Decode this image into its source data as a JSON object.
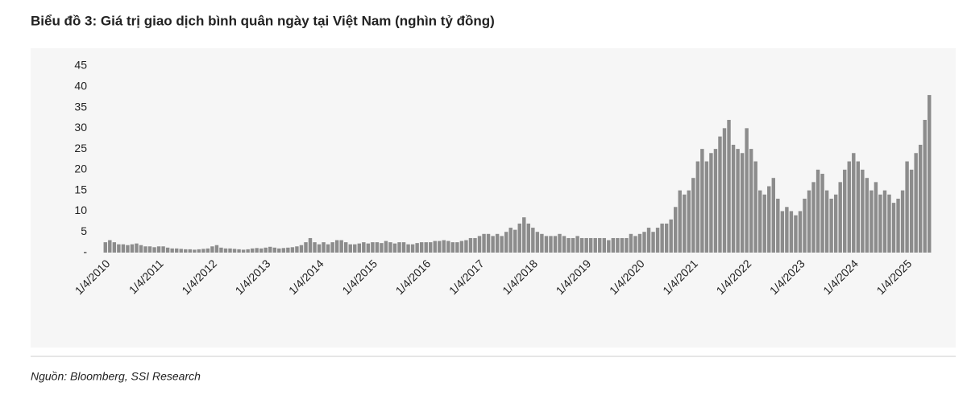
{
  "chart_data": {
    "type": "bar",
    "title": "Biểu đồ 3: Giá trị giao dịch bình quân ngày tại Việt Nam (nghìn tỷ đồng)",
    "source": "Nguồn: Bloomberg, SSI Research",
    "color": "#8c8c8c",
    "categories": [
      "1/4/2010",
      null,
      null,
      null,
      null,
      null,
      null,
      null,
      null,
      null,
      null,
      null,
      "1/4/2011",
      null,
      null,
      null,
      null,
      null,
      null,
      null,
      null,
      null,
      null,
      null,
      "1/4/2012",
      null,
      null,
      null,
      null,
      null,
      null,
      null,
      null,
      null,
      null,
      null,
      "1/4/2013",
      null,
      null,
      null,
      null,
      null,
      null,
      null,
      null,
      null,
      null,
      null,
      "1/4/2014",
      null,
      null,
      null,
      null,
      null,
      null,
      null,
      null,
      null,
      null,
      null,
      "1/4/2015",
      null,
      null,
      null,
      null,
      null,
      null,
      null,
      null,
      null,
      null,
      null,
      "1/4/2016",
      null,
      null,
      null,
      null,
      null,
      null,
      null,
      null,
      null,
      null,
      null,
      "1/4/2017",
      null,
      null,
      null,
      null,
      null,
      null,
      null,
      null,
      null,
      null,
      null,
      "1/4/2018",
      null,
      null,
      null,
      null,
      null,
      null,
      null,
      null,
      null,
      null,
      null,
      "1/4/2019",
      null,
      null,
      null,
      null,
      null,
      null,
      null,
      null,
      null,
      null,
      null,
      "1/4/2020",
      null,
      null,
      null,
      null,
      null,
      null,
      null,
      null,
      null,
      null,
      null,
      "1/4/2021",
      null,
      null,
      null,
      null,
      null,
      null,
      null,
      null,
      null,
      null,
      null,
      "1/4/2022",
      null,
      null,
      null,
      null,
      null,
      null,
      null,
      null,
      null,
      null,
      null,
      "1/4/2023",
      null,
      null,
      null,
      null,
      null,
      null,
      null,
      null,
      null,
      null,
      null,
      "1/4/2024",
      null,
      null,
      null,
      null,
      null,
      null,
      null,
      null,
      null,
      null,
      null,
      "1/4/2025",
      null,
      null,
      null,
      null,
      null
    ],
    "values": [
      2.5,
      3,
      2.5,
      2,
      2,
      1.8,
      2,
      2.2,
      1.8,
      1.5,
      1.5,
      1.3,
      1.5,
      1.5,
      1.2,
      1,
      1,
      0.9,
      0.8,
      0.8,
      0.7,
      0.8,
      0.9,
      1,
      1.5,
      1.8,
      1.2,
      1,
      1,
      0.9,
      0.8,
      0.7,
      0.8,
      1,
      1.1,
      1,
      1.2,
      1.4,
      1.2,
      1,
      1.1,
      1.2,
      1.3,
      1.5,
      1.8,
      2.5,
      3.5,
      2.5,
      2,
      2.5,
      2,
      2.5,
      3,
      3,
      2.5,
      2,
      2,
      2.2,
      2.5,
      2.2,
      2.5,
      2.5,
      2.3,
      2.8,
      2.5,
      2.2,
      2.5,
      2.5,
      2,
      2,
      2.3,
      2.5,
      2.5,
      2.5,
      2.8,
      2.8,
      3,
      2.8,
      2.5,
      2.5,
      2.8,
      3,
      3.5,
      3.5,
      4,
      4.5,
      4.5,
      4,
      4.5,
      4,
      5,
      6,
      5.5,
      7,
      8.5,
      7,
      6,
      5,
      4.5,
      4,
      4,
      4,
      4.5,
      4,
      3.5,
      3.5,
      4,
      3.5,
      3.5,
      3.5,
      3.5,
      3.5,
      3.5,
      3,
      3.5,
      3.5,
      3.5,
      3.5,
      4.5,
      4,
      4.5,
      5,
      6,
      5,
      6,
      7,
      7,
      8,
      11,
      15,
      14,
      15,
      18,
      22,
      25,
      22,
      24,
      25,
      28,
      30,
      32,
      26,
      25,
      24,
      30,
      25,
      22,
      15,
      14,
      16,
      18,
      13,
      10,
      11,
      10,
      9,
      10,
      13,
      15,
      17,
      20,
      19,
      15,
      13,
      14,
      17,
      20,
      22,
      24,
      22,
      20,
      18,
      15,
      17,
      14,
      15,
      14,
      12,
      13,
      15,
      22,
      20,
      24,
      26,
      32,
      38
    ],
    "ylim": [
      0,
      45
    ],
    "yticks": [
      {
        "value": 0,
        "label": "-"
      },
      5,
      10,
      15,
      20,
      25,
      30,
      35,
      40,
      45
    ]
  }
}
